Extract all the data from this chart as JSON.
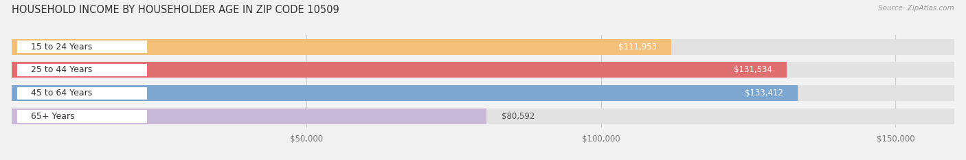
{
  "title": "HOUSEHOLD INCOME BY HOUSEHOLDER AGE IN ZIP CODE 10509",
  "source": "Source: ZipAtlas.com",
  "categories": [
    "15 to 24 Years",
    "25 to 44 Years",
    "45 to 64 Years",
    "65+ Years"
  ],
  "values": [
    111953,
    131534,
    133412,
    80592
  ],
  "bar_colors": [
    "#F5C07A",
    "#E07070",
    "#7BA7D0",
    "#C9B8D8"
  ],
  "bg_color": "#F2F2F2",
  "track_color": "#E2E2E2",
  "xmin": 0,
  "xmax": 160000,
  "xticks": [
    50000,
    100000,
    150000
  ],
  "xtick_labels": [
    "$50,000",
    "$100,000",
    "$150,000"
  ],
  "title_fontsize": 10.5,
  "label_fontsize": 9,
  "value_fontsize": 8.5,
  "tick_fontsize": 8.5,
  "bar_height": 0.68,
  "figsize": [
    14.06,
    2.33
  ],
  "dpi": 100
}
